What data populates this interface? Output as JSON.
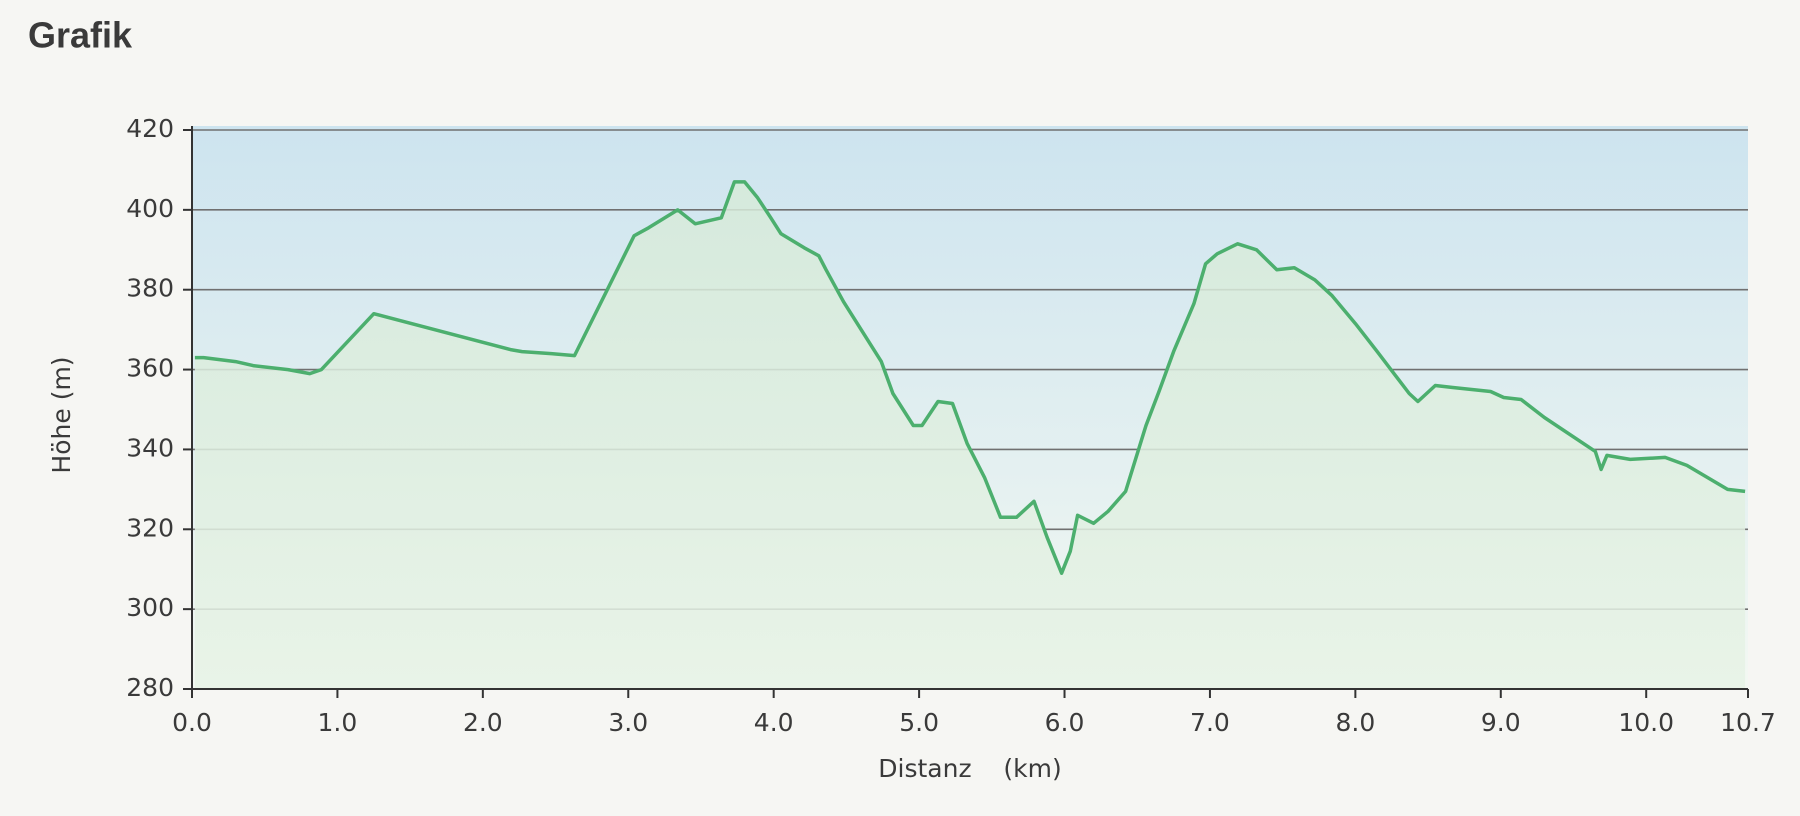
{
  "chart_data": {
    "type": "area",
    "title": "Grafik",
    "x_label": "Distanz    (km)",
    "y_label": "Höhe (m)",
    "color": "#4caf6e",
    "grid": true,
    "x": [
      0.02,
      0.08,
      0.3,
      0.42,
      0.66,
      0.81,
      0.89,
      1.25,
      2.19,
      2.27,
      2.47,
      2.63,
      3.04,
      3.14,
      3.34,
      3.46,
      3.64,
      3.73,
      3.8,
      3.89,
      3.98,
      4.05,
      4.21,
      4.31,
      4.36,
      4.48,
      4.74,
      4.82,
      4.96,
      5.02,
      5.13,
      5.23,
      5.33,
      5.45,
      5.56,
      5.67,
      5.79,
      5.88,
      5.98,
      6.04,
      6.09,
      6.2,
      6.3,
      6.42,
      6.56,
      6.65,
      6.75,
      6.89,
      6.97,
      7.05,
      7.19,
      7.32,
      7.46,
      7.58,
      7.72,
      7.84,
      8.0,
      8.15,
      8.37,
      8.43,
      8.55,
      8.67,
      8.93,
      9.02,
      9.14,
      9.3,
      9.65,
      9.69,
      9.73,
      9.89,
      10.13,
      10.28,
      10.56,
      10.68
    ],
    "values": [
      363,
      363,
      362,
      361,
      360,
      359,
      360,
      374,
      365,
      364.5,
      364,
      363.5,
      393.5,
      395.5,
      400,
      396.5,
      398,
      407,
      407,
      403,
      398,
      394,
      390.5,
      388.5,
      385,
      377,
      362,
      354,
      346,
      346,
      352,
      351.5,
      341.5,
      333,
      323,
      323,
      327,
      318,
      309,
      314.5,
      323.5,
      321.5,
      324.5,
      329.5,
      346,
      354.5,
      364.5,
      376.5,
      386.5,
      389,
      391.5,
      390,
      385,
      385.5,
      382.5,
      378.5,
      371.5,
      364.5,
      354,
      352,
      356,
      355.5,
      354.5,
      353,
      352.5,
      348,
      339.5,
      335,
      338.5,
      337.5,
      338,
      336,
      330,
      329.5
    ],
    "xlim": [
      0,
      10.7
    ],
    "xticks": [
      {
        "value": 0,
        "label": "0.0"
      },
      {
        "value": 1,
        "label": "1.0"
      },
      {
        "value": 2,
        "label": "2.0"
      },
      {
        "value": 3,
        "label": "3.0"
      },
      {
        "value": 4,
        "label": "4.0"
      },
      {
        "value": 5,
        "label": "5.0"
      },
      {
        "value": 6,
        "label": "6.0"
      },
      {
        "value": 7,
        "label": "7.0"
      },
      {
        "value": 8,
        "label": "8.0"
      },
      {
        "value": 9,
        "label": "9.0"
      },
      {
        "value": 10,
        "label": "10.0"
      },
      10.7
    ],
    "ylim": [
      280,
      421
    ],
    "yticks": [
      280,
      300,
      320,
      340,
      360,
      380,
      400,
      420
    ]
  }
}
